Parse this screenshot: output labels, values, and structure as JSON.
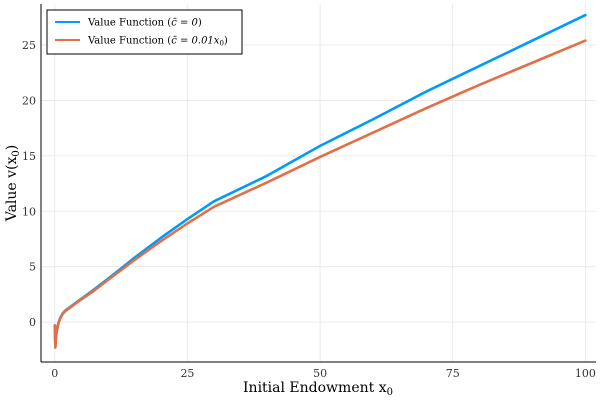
{
  "chart_data": {
    "type": "line",
    "title": "",
    "xlabel": "Initial Endowment x",
    "xlabel_sub": "0",
    "ylabel": "Value v(x",
    "ylabel_sub": "0",
    "ylabel_close": ")",
    "xlim": [
      -2.6,
      102
    ],
    "ylim": [
      -3.6,
      28.7
    ],
    "x_ticks": [
      0,
      25,
      50,
      75,
      100
    ],
    "y_ticks": [
      0,
      5,
      10,
      15,
      20,
      25
    ],
    "grid": true,
    "legend_position": "top-left",
    "colors": {
      "series_1": "#009AF9",
      "series_2": "#E26F46"
    },
    "series": [
      {
        "name": "Value Function (c̄ = 0)",
        "color": "#009AF9",
        "x": [
          0.01,
          0.1,
          0.2,
          0.3,
          0.5,
          0.7,
          1,
          1.5,
          2,
          3,
          4,
          5,
          7,
          10,
          15,
          20,
          25,
          30,
          40,
          50,
          60,
          70,
          80,
          90,
          100
        ],
        "y": [
          -0.3,
          -2.2,
          -1.4,
          -1.0,
          -0.45,
          -0.05,
          0.35,
          0.8,
          1.05,
          1.4,
          1.75,
          2.1,
          2.8,
          3.9,
          5.8,
          7.6,
          9.3,
          10.9,
          13.2,
          15.9,
          18.3,
          20.8,
          23.1,
          25.4,
          27.7
        ]
      },
      {
        "name": "Value Function (c̄ = 0.01x0)",
        "color": "#E26F46",
        "x": [
          0.01,
          0.1,
          0.2,
          0.3,
          0.5,
          0.7,
          1,
          1.5,
          2,
          3,
          4,
          5,
          7,
          10,
          15,
          20,
          25,
          30,
          40,
          50,
          60,
          70,
          80,
          90,
          100
        ],
        "y": [
          -0.3,
          -2.3,
          -1.5,
          -1.05,
          -0.5,
          -0.1,
          0.3,
          0.75,
          1.0,
          1.35,
          1.7,
          2.05,
          2.7,
          3.8,
          5.6,
          7.3,
          8.9,
          10.4,
          12.6,
          14.9,
          17.1,
          19.3,
          21.4,
          23.4,
          25.4
        ]
      }
    ]
  },
  "legend": {
    "entry_1_prefix": "Value Function (",
    "entry_1_math": "c̄ = 0",
    "entry_1_suffix": ")",
    "entry_2_prefix": "Value Function (",
    "entry_2_math": "c̄ = 0.01x",
    "entry_2_sub": "0",
    "entry_2_suffix": ")"
  }
}
